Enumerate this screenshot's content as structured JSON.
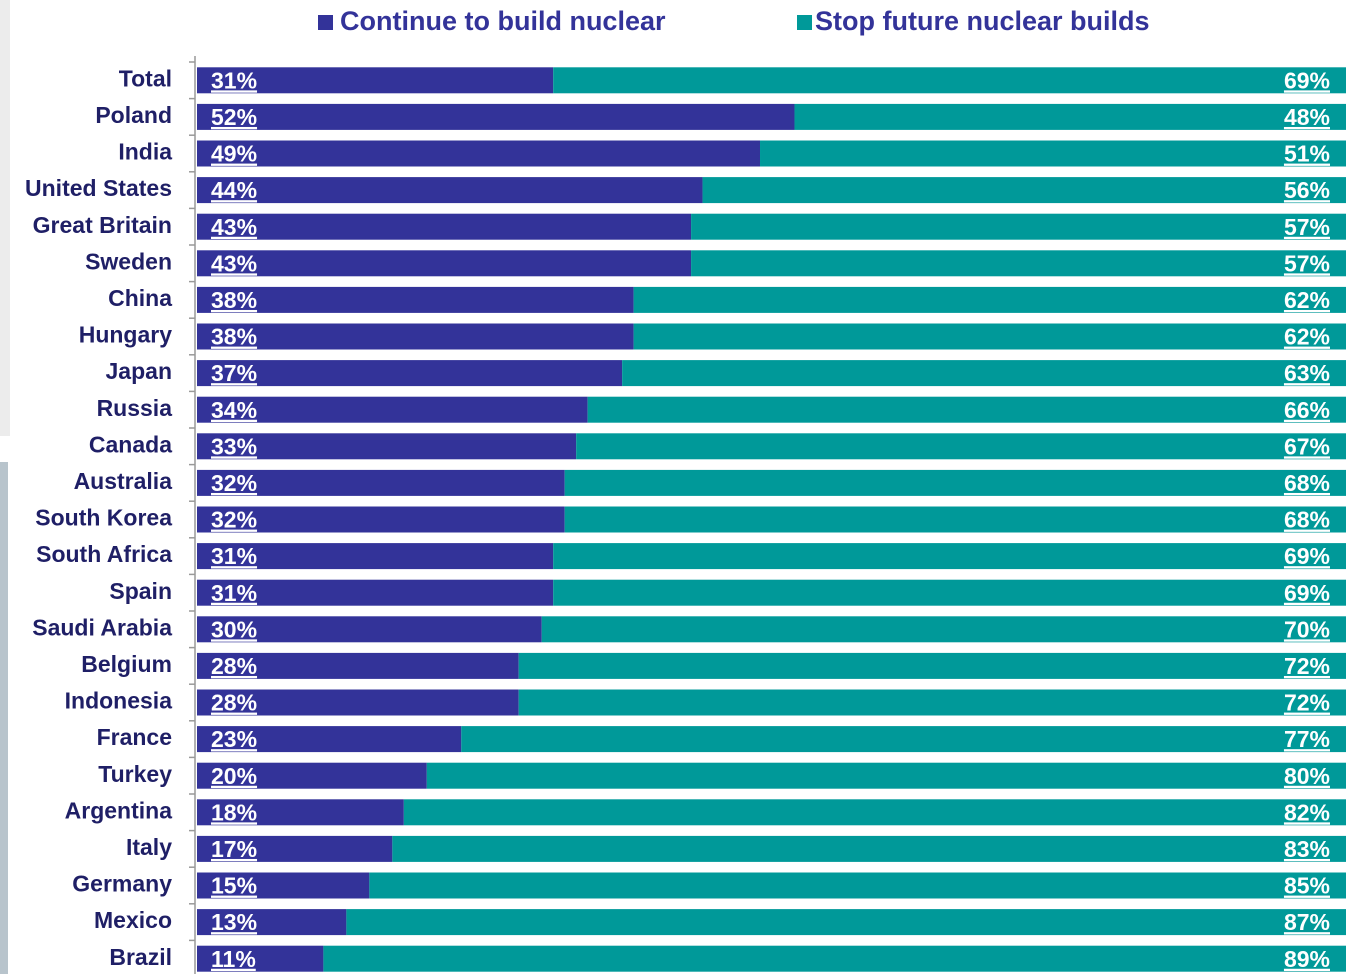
{
  "chart_data": {
    "type": "stacked-bar",
    "categories": [
      "Total",
      "Poland",
      "India",
      "United States",
      "Great Britain",
      "Sweden",
      "China",
      "Hungary",
      "Japan",
      "Russia",
      "Canada",
      "Australia",
      "South Korea",
      "South Africa",
      "Spain",
      "Saudi Arabia",
      "Belgium",
      "Indonesia",
      "France",
      "Turkey",
      "Argentina",
      "Italy",
      "Germany",
      "Mexico",
      "Brazil"
    ],
    "series": [
      {
        "name": "Continue to build nuclear",
        "color": "#333399",
        "values": [
          31,
          52,
          49,
          44,
          43,
          43,
          38,
          38,
          37,
          34,
          33,
          32,
          32,
          31,
          31,
          30,
          28,
          28,
          23,
          20,
          18,
          17,
          15,
          13,
          11
        ],
        "value_labels": [
          "31%",
          "52%",
          "49%",
          "44%",
          "43%",
          "43%",
          "38%",
          "38%",
          "37%",
          "34%",
          "33%",
          "32%",
          "32%",
          "31%",
          "31%",
          "30%",
          "28%",
          "28%",
          "23%",
          "20%",
          "18%",
          "17%",
          "15%",
          "13%",
          "11%"
        ]
      },
      {
        "name": "Stop future nuclear builds",
        "color": "#009999",
        "values": [
          69,
          48,
          51,
          56,
          57,
          57,
          62,
          62,
          63,
          66,
          67,
          68,
          68,
          69,
          69,
          70,
          72,
          72,
          77,
          80,
          82,
          83,
          85,
          87,
          89
        ],
        "value_labels": [
          "69%",
          "48%",
          "51%",
          "56%",
          "57%",
          "57%",
          "62%",
          "62%",
          "63%",
          "66%",
          "67%",
          "68%",
          "68%",
          "69%",
          "69%",
          "70%",
          "72%",
          "72%",
          "77%",
          "80%",
          "82%",
          "83%",
          "85%",
          "87%",
          "89%"
        ]
      }
    ],
    "xlim": [
      0,
      100
    ]
  }
}
